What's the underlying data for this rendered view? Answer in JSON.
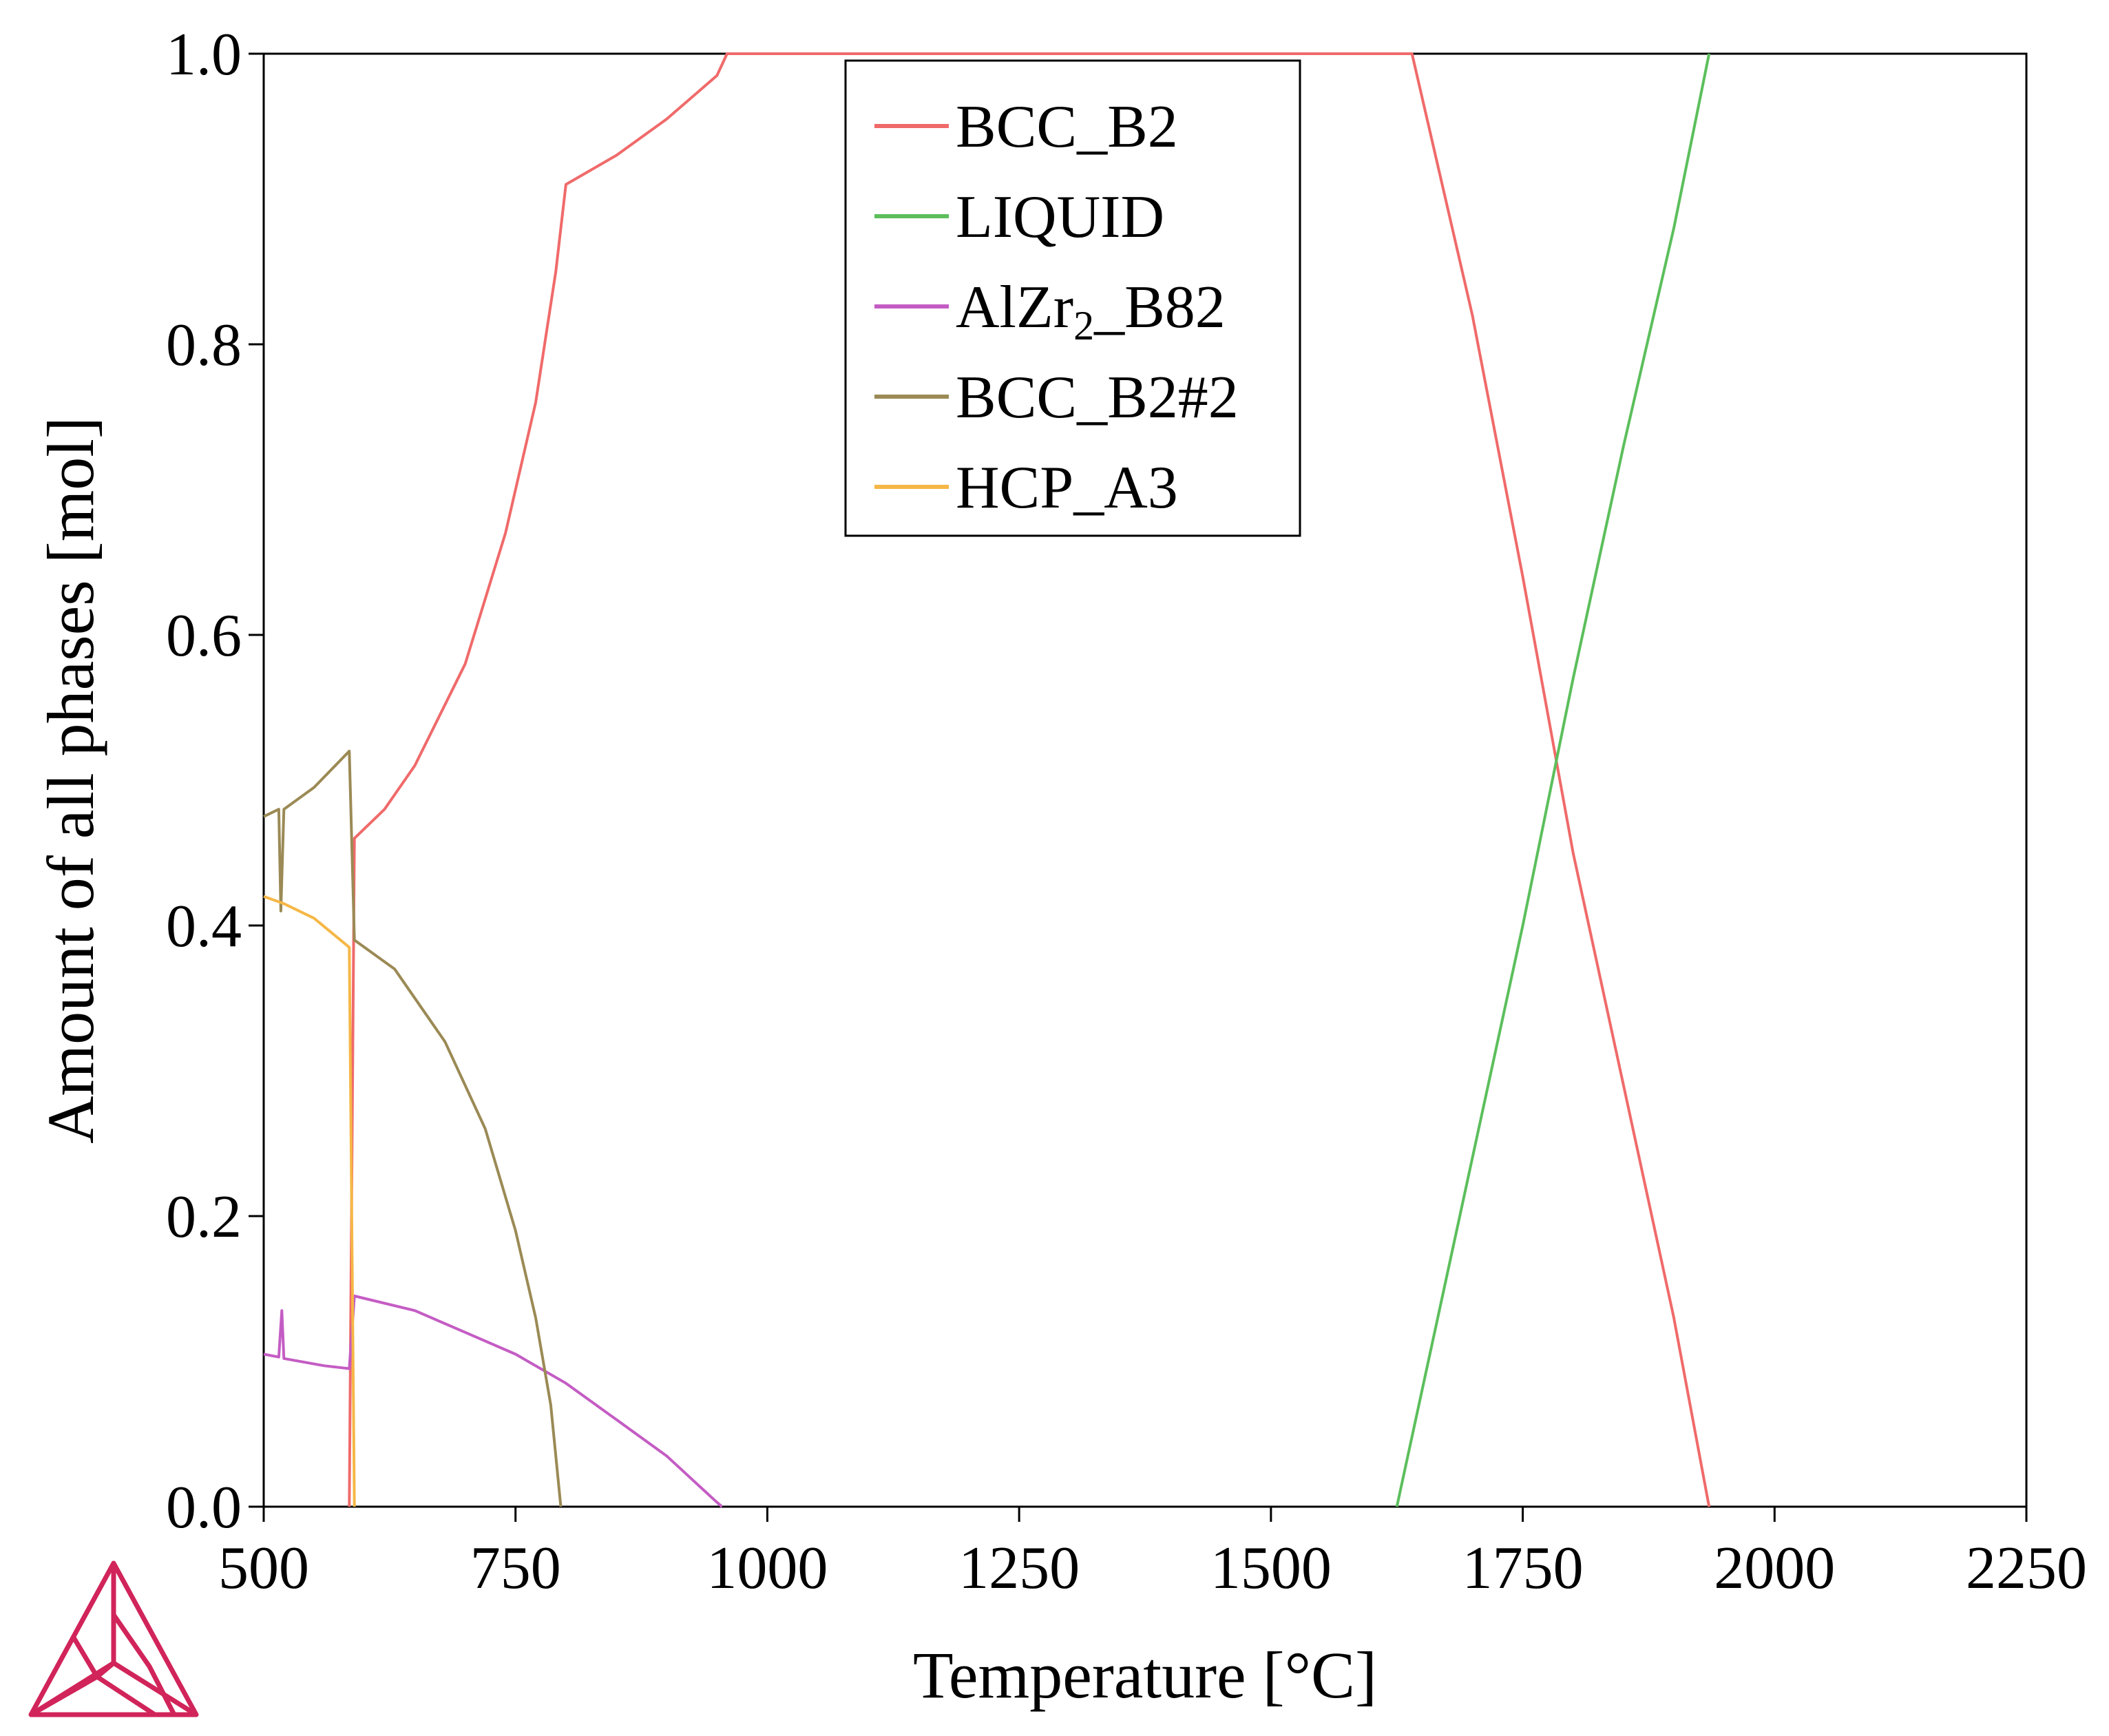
{
  "chart_data": {
    "type": "line",
    "title": "",
    "xlabel": "Temperature [°C]",
    "ylabel": "Amount of all phases [mol]",
    "xlim": [
      500,
      2250
    ],
    "ylim": [
      0.0,
      1.0
    ],
    "x_ticks": [
      500,
      750,
      1000,
      1250,
      1500,
      1750,
      2000,
      2250
    ],
    "x_tick_labels": [
      "500",
      "750",
      "1000",
      "1250",
      "1500",
      "1750",
      "2000",
      "2250"
    ],
    "y_ticks": [
      0.0,
      0.2,
      0.4,
      0.6,
      0.8,
      1.0
    ],
    "y_tick_labels": [
      "0.0",
      "0.2",
      "0.4",
      "0.6",
      "0.8",
      "1.0"
    ],
    "grid": false,
    "legend_position": "top-center",
    "series": [
      {
        "name": "BCC_B2",
        "legend_main": "BCC_B2",
        "legend_sub": "",
        "legend_tail": "",
        "color": "#f06a6a",
        "points": [
          [
            585,
            0.0
          ],
          [
            590,
            0.46
          ],
          [
            620,
            0.48
          ],
          [
            650,
            0.51
          ],
          [
            700,
            0.58
          ],
          [
            740,
            0.67
          ],
          [
            770,
            0.76
          ],
          [
            790,
            0.85
          ],
          [
            800,
            0.91
          ],
          [
            850,
            0.93
          ],
          [
            900,
            0.955
          ],
          [
            950,
            0.985
          ],
          [
            960,
            1.0
          ],
          [
            1640,
            1.0
          ],
          [
            1700,
            0.82
          ],
          [
            1750,
            0.64
          ],
          [
            1800,
            0.45
          ],
          [
            1850,
            0.29
          ],
          [
            1900,
            0.13
          ],
          [
            1935,
            0.0
          ]
        ]
      },
      {
        "name": "LIQUID",
        "legend_main": "LIQUID",
        "legend_sub": "",
        "legend_tail": "",
        "color": "#5cbf5c",
        "points": [
          [
            1625,
            0.0
          ],
          [
            1700,
            0.24
          ],
          [
            1750,
            0.4
          ],
          [
            1800,
            0.57
          ],
          [
            1850,
            0.73
          ],
          [
            1900,
            0.88
          ],
          [
            1935,
            1.0
          ]
        ]
      },
      {
        "name": "AlZr2_B82",
        "legend_main": "AlZr",
        "legend_sub": "2",
        "legend_tail": "_B82",
        "color": "#c45cc4",
        "points": [
          [
            500,
            0.105
          ],
          [
            515,
            0.103
          ],
          [
            518,
            0.135
          ],
          [
            520,
            0.102
          ],
          [
            560,
            0.097
          ],
          [
            585,
            0.095
          ],
          [
            590,
            0.145
          ],
          [
            650,
            0.135
          ],
          [
            700,
            0.12
          ],
          [
            750,
            0.105
          ],
          [
            800,
            0.085
          ],
          [
            850,
            0.06
          ],
          [
            900,
            0.035
          ],
          [
            950,
            0.003
          ],
          [
            955,
            0.0
          ]
        ]
      },
      {
        "name": "BCC_B2#2",
        "legend_main": "BCC_B2#2",
        "legend_sub": "",
        "legend_tail": "",
        "color": "#9b8a55",
        "points": [
          [
            500,
            0.475
          ],
          [
            515,
            0.48
          ],
          [
            517,
            0.41
          ],
          [
            520,
            0.48
          ],
          [
            550,
            0.495
          ],
          [
            585,
            0.52
          ],
          [
            590,
            0.39
          ],
          [
            630,
            0.37
          ],
          [
            680,
            0.32
          ],
          [
            720,
            0.26
          ],
          [
            750,
            0.19
          ],
          [
            770,
            0.13
          ],
          [
            785,
            0.07
          ],
          [
            795,
            0.0
          ]
        ]
      },
      {
        "name": "HCP_A3",
        "legend_main": "HCP_A3",
        "legend_sub": "",
        "legend_tail": "",
        "color": "#f5b746",
        "points": [
          [
            500,
            0.42
          ],
          [
            520,
            0.415
          ],
          [
            550,
            0.405
          ],
          [
            585,
            0.385
          ],
          [
            590,
            0.0
          ]
        ]
      }
    ]
  }
}
